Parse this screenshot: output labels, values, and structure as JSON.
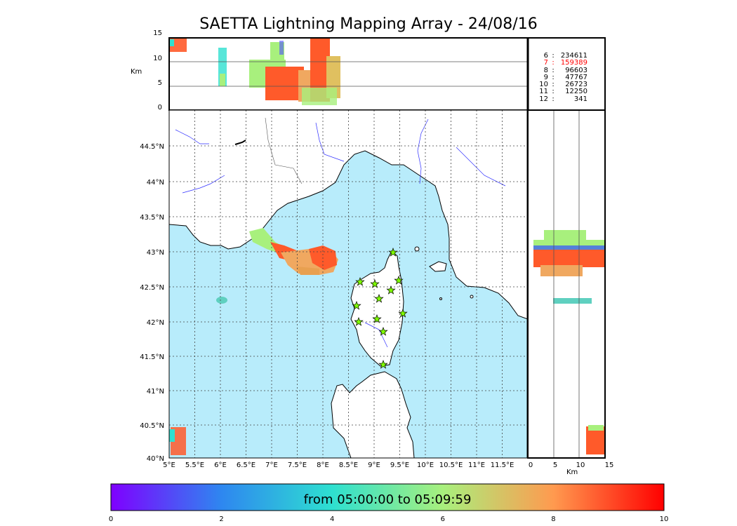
{
  "title": "SAETTA Lightning Mapping Array - 24/08/16",
  "altitude_panel": {
    "ylabel": "Km",
    "ticks": [
      "15",
      "10",
      "5",
      "0"
    ]
  },
  "counts": [
    {
      "bin": "6",
      "count": "234611",
      "color": "#000000"
    },
    {
      "bin": "7",
      "count": "159389",
      "color": "#ff0000"
    },
    {
      "bin": "8",
      "count": "96603",
      "color": "#000000"
    },
    {
      "bin": "9",
      "count": "47767",
      "color": "#000000"
    },
    {
      "bin": "10",
      "count": "26723",
      "color": "#000000"
    },
    {
      "bin": "11",
      "count": "12250",
      "color": "#000000"
    },
    {
      "bin": "12",
      "count": "341",
      "color": "#000000"
    }
  ],
  "map": {
    "lon_ticks": [
      "5°E",
      "5.5°E",
      "6°E",
      "6.5°E",
      "7°E",
      "7.5°E",
      "8°E",
      "8.5°E",
      "9°E",
      "9.5°E",
      "10°E",
      "10.5°E",
      "11°E",
      "11.5°E"
    ],
    "lat_ticks": [
      "44.5°N",
      "44°N",
      "43.5°N",
      "43°N",
      "42.5°N",
      "42°N",
      "41.5°N",
      "41°N",
      "40.5°N",
      "40°N"
    ],
    "sea_color": "#b8ecfb",
    "station_color": "#7fff00"
  },
  "side_panel": {
    "xlabel": "Km",
    "ticks": [
      "0",
      "5",
      "10",
      "15"
    ]
  },
  "colorbar": {
    "caption": "from 05:00:00 to 05:09:59",
    "ticks": [
      "0",
      "2",
      "4",
      "6",
      "8",
      "10"
    ],
    "colors": [
      "#7f00ff",
      "#2e87f0",
      "#2ee0d0",
      "#a8f07d",
      "#ff9a4f",
      "#ff0000"
    ]
  }
}
